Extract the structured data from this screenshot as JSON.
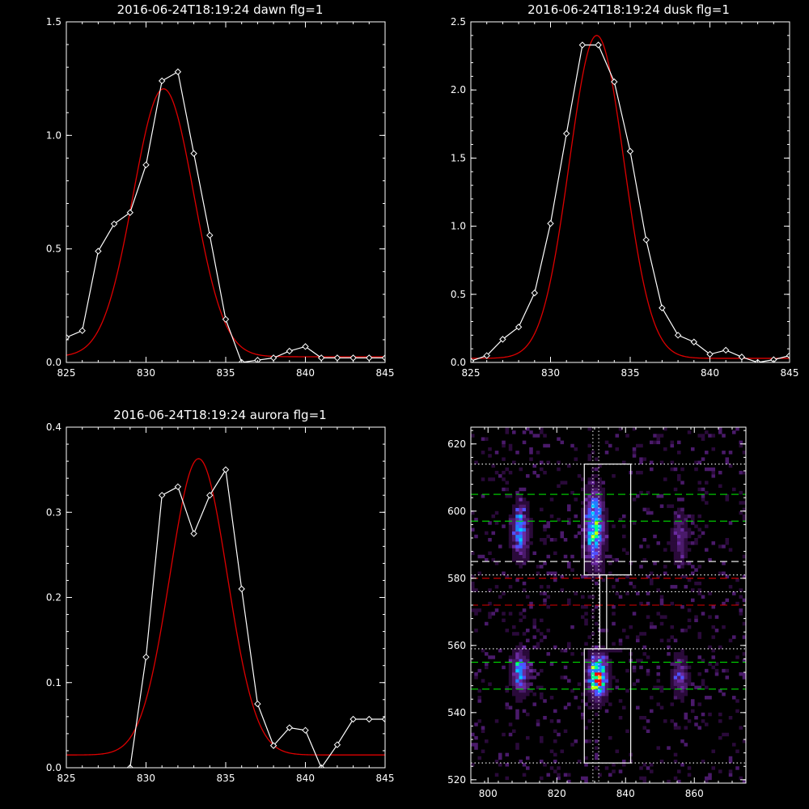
{
  "chart_data": [
    {
      "id": "dawn",
      "type": "line",
      "title": "2016-06-24T18:19:24 dawn flg=1",
      "xlim": [
        825,
        845
      ],
      "ylim": [
        0,
        1.5
      ],
      "xticks": [
        825,
        830,
        835,
        840,
        845
      ],
      "yticks": [
        0.0,
        0.5,
        1.0,
        1.5
      ],
      "xticklabels": [
        "825",
        "830",
        "835",
        "840",
        "845"
      ],
      "yticklabels": [
        "0.0",
        "0.5",
        "1.0",
        "1.5"
      ],
      "colors": {
        "data": "#ffffff",
        "fit": "#dd0000"
      },
      "series": [
        {
          "role": "data",
          "x": [
            825,
            826,
            827,
            828,
            829,
            830,
            831,
            832,
            833,
            834,
            835,
            836,
            837,
            838,
            839,
            840,
            841,
            842,
            843,
            844,
            845
          ],
          "y": [
            0.11,
            0.14,
            0.49,
            0.61,
            0.66,
            0.87,
            1.24,
            1.28,
            0.92,
            0.56,
            0.19,
            0.0,
            0.01,
            0.02,
            0.05,
            0.07,
            0.02,
            0.02,
            0.02,
            0.02,
            0.02
          ]
        },
        {
          "role": "fit",
          "gaussian": {
            "amp": 1.18,
            "center": 831.1,
            "sigma": 1.9,
            "offset": 0.025
          }
        }
      ]
    },
    {
      "id": "dusk",
      "type": "line",
      "title": "2016-06-24T18:19:24 dusk flg=1",
      "xlim": [
        825,
        845
      ],
      "ylim": [
        0,
        2.5
      ],
      "xticks": [
        825,
        830,
        835,
        840,
        845
      ],
      "yticks": [
        0.0,
        0.5,
        1.0,
        1.5,
        2.0,
        2.5
      ],
      "xticklabels": [
        "825",
        "830",
        "835",
        "840",
        "845"
      ],
      "yticklabels": [
        "0.0",
        "0.5",
        "1.0",
        "1.5",
        "2.0",
        "2.5"
      ],
      "colors": {
        "data": "#ffffff",
        "fit": "#dd0000"
      },
      "series": [
        {
          "role": "data",
          "x": [
            825,
            826,
            827,
            828,
            829,
            830,
            831,
            832,
            833,
            834,
            835,
            836,
            837,
            838,
            839,
            840,
            841,
            842,
            843,
            844,
            845
          ],
          "y": [
            0.01,
            0.05,
            0.17,
            0.26,
            0.51,
            1.02,
            1.68,
            2.33,
            2.33,
            2.06,
            1.55,
            0.9,
            0.4,
            0.2,
            0.15,
            0.06,
            0.09,
            0.04,
            0.0,
            0.02,
            0.05
          ]
        },
        {
          "role": "fit",
          "gaussian": {
            "amp": 2.37,
            "center": 832.9,
            "sigma": 1.72,
            "offset": 0.03
          }
        }
      ]
    },
    {
      "id": "aurora",
      "type": "line",
      "title": "2016-06-24T18:19:24 aurora flg=1",
      "xlim": [
        825,
        845
      ],
      "ylim": [
        0,
        0.4
      ],
      "xticks": [
        825,
        830,
        835,
        840,
        845
      ],
      "yticks": [
        0.0,
        0.1,
        0.2,
        0.3,
        0.4
      ],
      "xticklabels": [
        "825",
        "830",
        "835",
        "840",
        "845"
      ],
      "yticklabels": [
        "0.0",
        "0.1",
        "0.2",
        "0.3",
        "0.4"
      ],
      "colors": {
        "data": "#ffffff",
        "fit": "#dd0000"
      },
      "series": [
        {
          "role": "data",
          "x": [
            825,
            826,
            827,
            828,
            829,
            830,
            831,
            832,
            833,
            834,
            835,
            836,
            837,
            838,
            839,
            840,
            841,
            842,
            843,
            844,
            845
          ],
          "y": [
            -0.005,
            -0.005,
            -0.005,
            -0.005,
            0.0,
            0.13,
            0.32,
            0.33,
            0.275,
            0.32,
            0.35,
            0.21,
            0.075,
            0.026,
            0.047,
            0.044,
            0.0,
            0.027,
            0.057,
            0.057,
            0.057
          ]
        },
        {
          "role": "fit",
          "gaussian": {
            "amp": 0.348,
            "center": 833.3,
            "sigma": 1.8,
            "offset": 0.015
          }
        }
      ]
    },
    {
      "id": "image",
      "type": "heatmap",
      "xlim": [
        795,
        875
      ],
      "ylim": [
        519,
        625
      ],
      "xticks": [
        800,
        820,
        840,
        860
      ],
      "yticks": [
        520,
        540,
        560,
        580,
        600,
        620
      ],
      "xticklabels": [
        "800",
        "820",
        "840",
        "860"
      ],
      "yticklabels": [
        "520",
        "540",
        "560",
        "580",
        "600",
        "620"
      ],
      "colormap": [
        "#000000",
        "#2a0a3a",
        "#4a1a6a",
        "#6a2aa0",
        "#5050ff",
        "#2080ff",
        "#00c8ff",
        "#00ff90",
        "#c0ff00",
        "#ffcc00",
        "#ff0000"
      ],
      "blobs": [
        {
          "cx": 809.5,
          "cy": 594,
          "sx": 1.6,
          "sy": 5,
          "amp": 0.5
        },
        {
          "cx": 809.5,
          "cy": 552,
          "sx": 1.6,
          "sy": 4,
          "amp": 0.55
        },
        {
          "cx": 831,
          "cy": 595,
          "sx": 1.8,
          "sy": 7,
          "amp": 0.7
        },
        {
          "cx": 832,
          "cy": 551,
          "sx": 1.8,
          "sy": 4,
          "amp": 0.95
        },
        {
          "cx": 856,
          "cy": 592,
          "sx": 1.5,
          "sy": 5,
          "amp": 0.25
        },
        {
          "cx": 856,
          "cy": 551,
          "sx": 1.5,
          "sy": 4,
          "amp": 0.3
        }
      ],
      "boxes": [
        {
          "x0": 828,
          "x1": 841.5,
          "y0": 581,
          "y1": 614,
          "style": "solid"
        },
        {
          "x0": 828,
          "x1": 841.5,
          "y0": 525,
          "y1": 559,
          "style": "solid"
        },
        {
          "x0": 832.5,
          "x1": 834.5,
          "y0": 559,
          "y1": 581,
          "style": "solid"
        }
      ],
      "hlines": [
        {
          "y": 614,
          "color": "#ffffff",
          "style": "dotted"
        },
        {
          "y": 605,
          "color": "#00dd00",
          "style": "dashed"
        },
        {
          "y": 597,
          "color": "#00dd00",
          "style": "dashed"
        },
        {
          "y": 585,
          "color": "#ffffff",
          "style": "dashed"
        },
        {
          "y": 581,
          "color": "#ffffff",
          "style": "dotted"
        },
        {
          "y": 580,
          "color": "#dd0000",
          "style": "dashed"
        },
        {
          "y": 576,
          "color": "#ffffff",
          "style": "dotted"
        },
        {
          "y": 572,
          "color": "#dd0000",
          "style": "dashed"
        },
        {
          "y": 559,
          "color": "#ffffff",
          "style": "dotted"
        },
        {
          "y": 555,
          "color": "#00dd00",
          "style": "dashed"
        },
        {
          "y": 547,
          "color": "#00dd00",
          "style": "dashed"
        },
        {
          "y": 525,
          "color": "#ffffff",
          "style": "dotted"
        }
      ],
      "vlines": [
        {
          "x": 830.5,
          "color": "#ffffff",
          "style": "dotted"
        },
        {
          "x": 832.2,
          "color": "#ffffff",
          "style": "dotted"
        }
      ]
    }
  ]
}
